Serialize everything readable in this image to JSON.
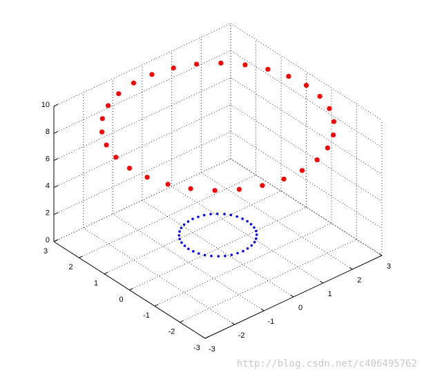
{
  "chart_data": {
    "type": "scatter3d",
    "xlim": [
      -3,
      3
    ],
    "ylim": [
      -3,
      3
    ],
    "zlim": [
      0,
      10
    ],
    "xticks": [
      -3,
      -2,
      -1,
      0,
      1,
      2,
      3
    ],
    "yticks": [
      -3,
      -2,
      -1,
      0,
      1,
      2,
      3
    ],
    "zticks": [
      0,
      2,
      4,
      6,
      8,
      10
    ],
    "grid": true,
    "series": [
      {
        "color": "#ff0000",
        "marker": "circle",
        "x": [
          3,
          2.93,
          2.74,
          2.43,
          2.01,
          1.5,
          0.93,
          0.31,
          -0.31,
          -0.93,
          -1.5,
          -2.01,
          -2.43,
          -2.74,
          -2.93,
          -3,
          -2.93,
          -2.74,
          -2.43,
          -2.01,
          -1.5,
          -0.93,
          -0.31,
          0.31,
          0.93,
          1.5,
          2.01,
          2.43,
          2.74,
          2.93
        ],
        "y": [
          0,
          0.62,
          1.22,
          1.76,
          2.23,
          2.6,
          2.85,
          2.98,
          2.98,
          2.85,
          2.6,
          2.23,
          1.76,
          1.22,
          0.62,
          0,
          -0.62,
          -1.22,
          -1.76,
          -2.23,
          -2.6,
          -2.85,
          -2.98,
          -2.98,
          -2.85,
          -2.6,
          -2.23,
          -1.76,
          -1.22,
          -0.62
        ],
        "z": [
          9,
          9,
          9,
          9,
          9,
          9,
          9,
          9,
          9,
          9,
          9,
          9,
          9,
          9,
          9,
          9,
          9,
          9,
          9,
          9,
          9,
          9,
          9,
          9,
          9,
          9,
          9,
          9,
          9,
          9
        ]
      },
      {
        "color": "#0000ff",
        "marker": "point",
        "x": [
          1,
          0.98,
          0.94,
          0.87,
          0.77,
          0.64,
          0.5,
          0.34,
          0.17,
          0,
          -0.17,
          -0.34,
          -0.5,
          -0.64,
          -0.77,
          -0.87,
          -0.94,
          -0.98,
          -1,
          -0.98,
          -0.94,
          -0.87,
          -0.77,
          -0.64,
          -0.5,
          -0.34,
          -0.17,
          0,
          0.17,
          0.34,
          0.5,
          0.64,
          0.77,
          0.87,
          0.94,
          0.98
        ],
        "y": [
          0,
          0.17,
          0.34,
          0.5,
          0.64,
          0.77,
          0.87,
          0.94,
          0.98,
          1,
          0.98,
          0.94,
          0.87,
          0.77,
          0.64,
          0.5,
          0.34,
          0.17,
          0,
          -0.17,
          -0.34,
          -0.5,
          -0.64,
          -0.77,
          -0.87,
          -0.94,
          -0.98,
          -1,
          -0.98,
          -0.94,
          -0.87,
          -0.77,
          -0.64,
          -0.5,
          -0.34,
          -0.17
        ],
        "z": [
          1,
          1,
          1,
          1,
          1,
          1,
          1,
          1,
          1,
          1,
          1,
          1,
          1,
          1,
          1,
          1,
          1,
          1,
          1,
          1,
          1,
          1,
          1,
          1,
          1,
          1,
          1,
          1,
          1,
          1,
          1,
          1,
          1,
          1,
          1,
          1
        ]
      }
    ],
    "watermark": "http://blog.csdn.net/c406495762"
  }
}
